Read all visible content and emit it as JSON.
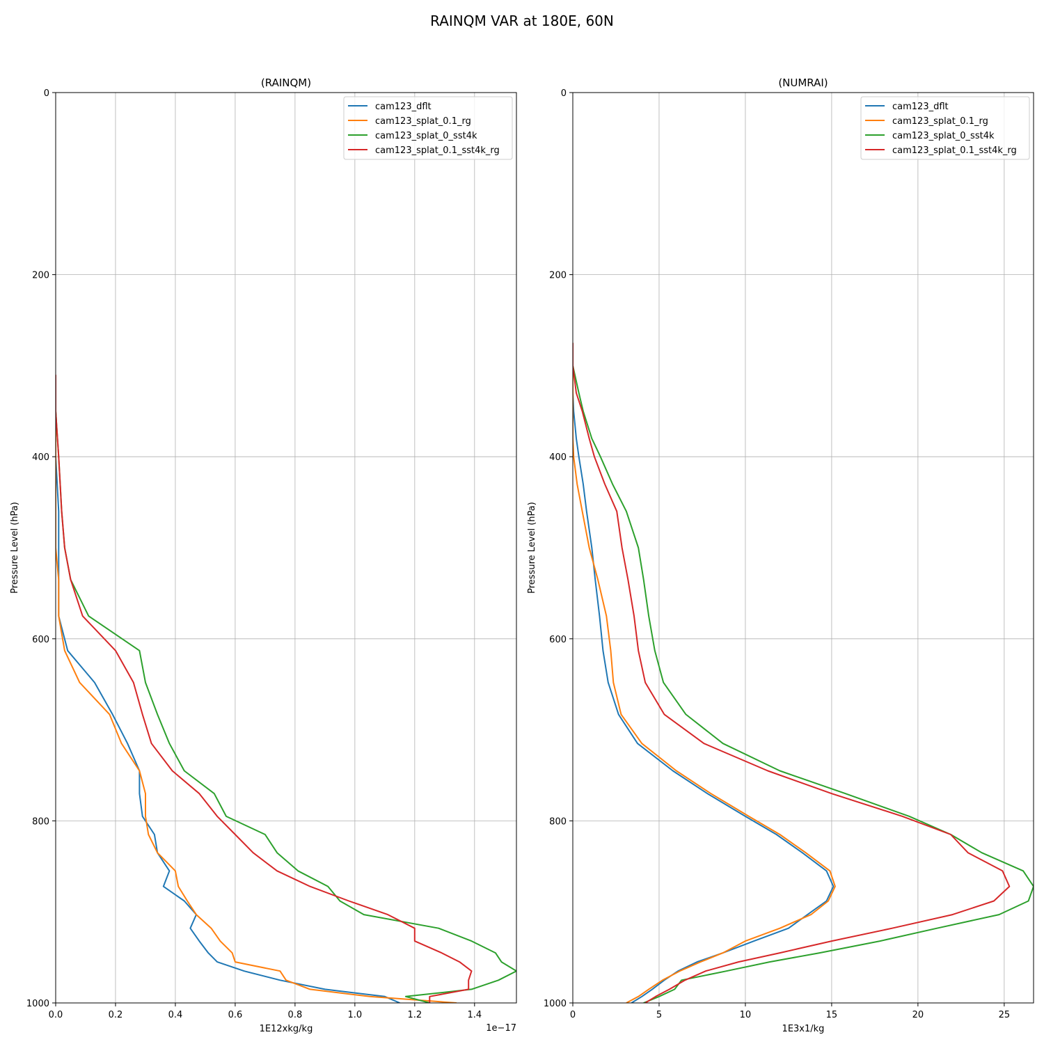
{
  "figure": {
    "title": "RAINQM VAR at 180E, 60N"
  },
  "colors": {
    "cam123_dflt": "#1f77b4",
    "cam123_splat_0.1_rg": "#ff7f0e",
    "cam123_splat_0_sst4k": "#2ca02c",
    "cam123_splat_0.1_sst4k_rg": "#d62728",
    "grid": "#b0b0b0"
  },
  "chart_data": [
    {
      "type": "line",
      "title": "(RAINQM)",
      "xlabel": "1E12xkg/kg",
      "ylabel": "Pressure Level (hPa)",
      "x_offset_text": "1e−17",
      "xlim": [
        0,
        1.54
      ],
      "ylim": [
        1000,
        0
      ],
      "xticks": [
        0.0,
        0.2,
        0.4,
        0.6,
        0.8,
        1.0,
        1.2,
        1.4
      ],
      "xtick_labels": [
        "0.0",
        "0.2",
        "0.4",
        "0.6",
        "0.8",
        "1.0",
        "1.2",
        "1.4"
      ],
      "yticks": [
        0,
        200,
        400,
        600,
        800,
        1000
      ],
      "ytick_labels": [
        "0",
        "200",
        "400",
        "600",
        "800",
        "1000"
      ],
      "grid": true,
      "legend_position": "upper right",
      "y_levels": [
        310,
        350,
        400,
        460,
        500,
        535,
        575,
        613,
        648,
        683,
        715,
        745,
        770,
        795,
        815,
        835,
        855,
        872,
        888,
        903,
        918,
        932,
        945,
        955,
        965,
        975,
        985,
        993,
        1000
      ],
      "series": [
        {
          "name": "cam123_dflt",
          "x": [
            0.0,
            0.0,
            0.0,
            0.01,
            0.01,
            0.01,
            0.01,
            0.04,
            0.13,
            0.19,
            0.24,
            0.28,
            0.28,
            0.29,
            0.33,
            0.34,
            0.38,
            0.36,
            0.43,
            0.47,
            0.45,
            0.48,
            0.51,
            0.54,
            0.63,
            0.75,
            0.9,
            1.1,
            1.15
          ]
        },
        {
          "name": "cam123_splat_0.1_rg",
          "x": [
            0.0,
            0.0,
            0.0,
            0.0,
            0.0,
            0.01,
            0.01,
            0.03,
            0.08,
            0.18,
            0.22,
            0.28,
            0.3,
            0.3,
            0.31,
            0.34,
            0.4,
            0.41,
            0.44,
            0.47,
            0.52,
            0.55,
            0.59,
            0.6,
            0.75,
            0.77,
            0.85,
            1.05,
            1.34
          ]
        },
        {
          "name": "cam123_splat_0_sst4k",
          "x": [
            0.0,
            0.0,
            0.01,
            0.02,
            0.03,
            0.05,
            0.11,
            0.28,
            0.3,
            0.34,
            0.38,
            0.43,
            0.53,
            0.57,
            0.7,
            0.74,
            0.81,
            0.91,
            0.95,
            1.03,
            1.28,
            1.39,
            1.47,
            1.49,
            1.54,
            1.48,
            1.39,
            1.17,
            1.25
          ]
        },
        {
          "name": "cam123_splat_0.1_sst4k_rg",
          "x": [
            0.0,
            0.0,
            0.01,
            0.02,
            0.03,
            0.05,
            0.09,
            0.2,
            0.26,
            0.29,
            0.32,
            0.39,
            0.48,
            0.54,
            0.6,
            0.66,
            0.74,
            0.85,
            0.98,
            1.11,
            1.2,
            1.2,
            1.29,
            1.35,
            1.39,
            1.38,
            1.38,
            1.25,
            1.25
          ]
        }
      ]
    },
    {
      "type": "line",
      "title": "(NUMRAI)",
      "xlabel": "1E3x1/kg",
      "ylabel": "Pressure Level (hPa)",
      "xlim": [
        0,
        26.7
      ],
      "ylim": [
        1000,
        0
      ],
      "xticks": [
        0,
        5,
        10,
        15,
        20,
        25
      ],
      "xtick_labels": [
        "0",
        "5",
        "10",
        "15",
        "20",
        "25"
      ],
      "yticks": [
        0,
        200,
        400,
        600,
        800,
        1000
      ],
      "ytick_labels": [
        "0",
        "200",
        "400",
        "600",
        "800",
        "1000"
      ],
      "grid": true,
      "legend_position": "upper right",
      "y_levels": [
        275,
        300,
        330,
        350,
        380,
        400,
        430,
        460,
        500,
        535,
        575,
        613,
        648,
        683,
        715,
        745,
        770,
        795,
        815,
        835,
        855,
        872,
        888,
        903,
        918,
        932,
        945,
        955,
        965,
        975,
        985,
        993,
        1000
      ],
      "series": [
        {
          "name": "cam123_dflt",
          "x": [
            0.0,
            0.0,
            0.0,
            0.05,
            0.2,
            0.35,
            0.6,
            0.8,
            1.1,
            1.3,
            1.55,
            1.75,
            2.05,
            2.65,
            3.75,
            5.8,
            7.8,
            10.0,
            11.8,
            13.3,
            14.7,
            15.1,
            14.7,
            13.6,
            12.5,
            10.5,
            8.7,
            7.2,
            6.1,
            5.3,
            4.6,
            4.0,
            3.4
          ]
        },
        {
          "name": "cam123_splat_0.1_rg",
          "x": [
            0.0,
            0.0,
            0.0,
            0.0,
            0.0,
            0.05,
            0.25,
            0.55,
            0.95,
            1.45,
            1.95,
            2.2,
            2.35,
            2.8,
            4.0,
            6.0,
            8.0,
            10.2,
            12.0,
            13.5,
            14.9,
            15.2,
            14.8,
            13.8,
            12.0,
            10.0,
            8.7,
            7.4,
            6.2,
            5.2,
            4.4,
            3.8,
            3.1
          ]
        },
        {
          "name": "cam123_splat_0_sst4k",
          "x": [
            0.0,
            0.0,
            0.35,
            0.6,
            1.1,
            1.6,
            2.3,
            3.1,
            3.8,
            4.1,
            4.4,
            4.75,
            5.25,
            6.55,
            8.7,
            12.0,
            15.8,
            19.5,
            21.9,
            23.7,
            26.1,
            26.7,
            26.4,
            24.7,
            21.1,
            17.8,
            14.3,
            11.4,
            8.9,
            6.3,
            5.9,
            5.0,
            4.1
          ]
        },
        {
          "name": "cam123_splat_0.1_sst4k_rg",
          "x": [
            0.0,
            0.0,
            0.2,
            0.55,
            0.95,
            1.25,
            1.85,
            2.55,
            2.85,
            3.2,
            3.55,
            3.8,
            4.2,
            5.3,
            7.6,
            11.3,
            15.0,
            19.1,
            21.9,
            22.9,
            24.9,
            25.3,
            24.4,
            22.0,
            18.5,
            15.0,
            12.0,
            9.6,
            7.7,
            6.5,
            5.6,
            4.8,
            4.2
          ]
        }
      ]
    }
  ]
}
